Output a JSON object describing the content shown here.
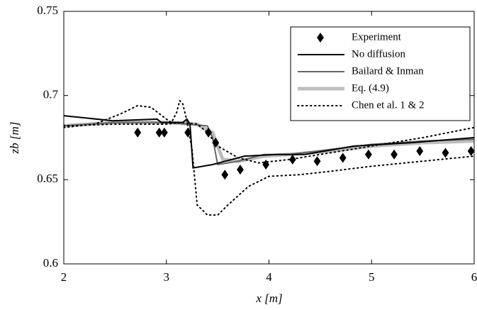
{
  "chart_data": {
    "type": "line",
    "xlabel": "x [m]",
    "ylabel": "zb [m]",
    "xlim": [
      2,
      6
    ],
    "ylim": [
      0.6,
      0.75
    ],
    "xticks": [
      2,
      3,
      4,
      5,
      6
    ],
    "yticks": [
      0.6,
      0.65,
      0.7,
      0.75
    ],
    "legend": "upper right",
    "series": [
      {
        "name": "Experiment",
        "style": "diamond",
        "color": "#000000",
        "x": [
          2.72,
          2.93,
          2.98,
          3.21,
          3.41,
          3.48,
          3.57,
          3.72,
          3.97,
          4.23,
          4.47,
          4.72,
          4.97,
          5.22,
          5.47,
          5.72,
          5.97
        ],
        "values": [
          0.678,
          0.678,
          0.678,
          0.678,
          0.678,
          0.672,
          0.653,
          0.656,
          0.659,
          0.662,
          0.661,
          0.663,
          0.665,
          0.665,
          0.667,
          0.666,
          0.667
        ]
      },
      {
        "name": "No diffusion",
        "style": "solid",
        "color": "#000000",
        "x": [
          2,
          2.48,
          2.91,
          2.95,
          3.16,
          3.2,
          3.23,
          3.26,
          3.45,
          3.76,
          4.07,
          4.35,
          4.83,
          5.39,
          6
        ],
        "values": [
          0.688,
          0.685,
          0.686,
          0.684,
          0.684,
          0.686,
          0.683,
          0.657,
          0.659,
          0.664,
          0.665,
          0.665,
          0.67,
          0.672,
          0.675
        ]
      },
      {
        "name": "Bailard & Inman",
        "style": "solid",
        "color": "#666666",
        "x": [
          2,
          2.5,
          3,
          3.2,
          3.4,
          3.45,
          3.5,
          3.7,
          3.95,
          4.2,
          4.6,
          5,
          5.5,
          6
        ],
        "values": [
          0.682,
          0.684,
          0.684,
          0.683,
          0.682,
          0.675,
          0.659,
          0.661,
          0.665,
          0.665,
          0.668,
          0.671,
          0.673,
          0.674
        ]
      },
      {
        "name": "Eq. (4.9)",
        "style": "thick",
        "color": "#bdbdbd",
        "x": [
          2,
          2.5,
          3,
          3.3,
          3.45,
          3.55,
          3.7,
          3.95,
          4.2,
          4.6,
          5,
          5.5,
          6
        ],
        "values": [
          0.682,
          0.684,
          0.684,
          0.683,
          0.678,
          0.662,
          0.661,
          0.664,
          0.665,
          0.667,
          0.67,
          0.672,
          0.673
        ]
      },
      {
        "name": "Chen et al. 1 & 2",
        "style": "dotted",
        "color": "#000000",
        "x": [
          2,
          2.3,
          2.55,
          2.72,
          2.85,
          3,
          3.05,
          3.1,
          3.13,
          3.16,
          3.2,
          3.25,
          3.3,
          3.4,
          3.5,
          3.6,
          3.8,
          4,
          4.3,
          4.6,
          5,
          5.5,
          6
        ],
        "values": [
          0.681,
          0.683,
          0.689,
          0.694,
          0.693,
          0.686,
          0.684,
          0.69,
          0.697,
          0.695,
          0.685,
          0.668,
          0.635,
          0.629,
          0.629,
          0.635,
          0.646,
          0.652,
          0.653,
          0.655,
          0.658,
          0.661,
          0.664
        ]
      },
      {
        "style": "dotted",
        "color": "#000000",
        "x": [
          2,
          2.5,
          3,
          3.15,
          3.3,
          3.4,
          3.5,
          3.7,
          3.9,
          4.2,
          4.6,
          5,
          5.5,
          6
        ],
        "values": [
          0.682,
          0.683,
          0.683,
          0.684,
          0.683,
          0.678,
          0.67,
          0.663,
          0.66,
          0.662,
          0.666,
          0.67,
          0.675,
          0.681
        ]
      }
    ]
  }
}
